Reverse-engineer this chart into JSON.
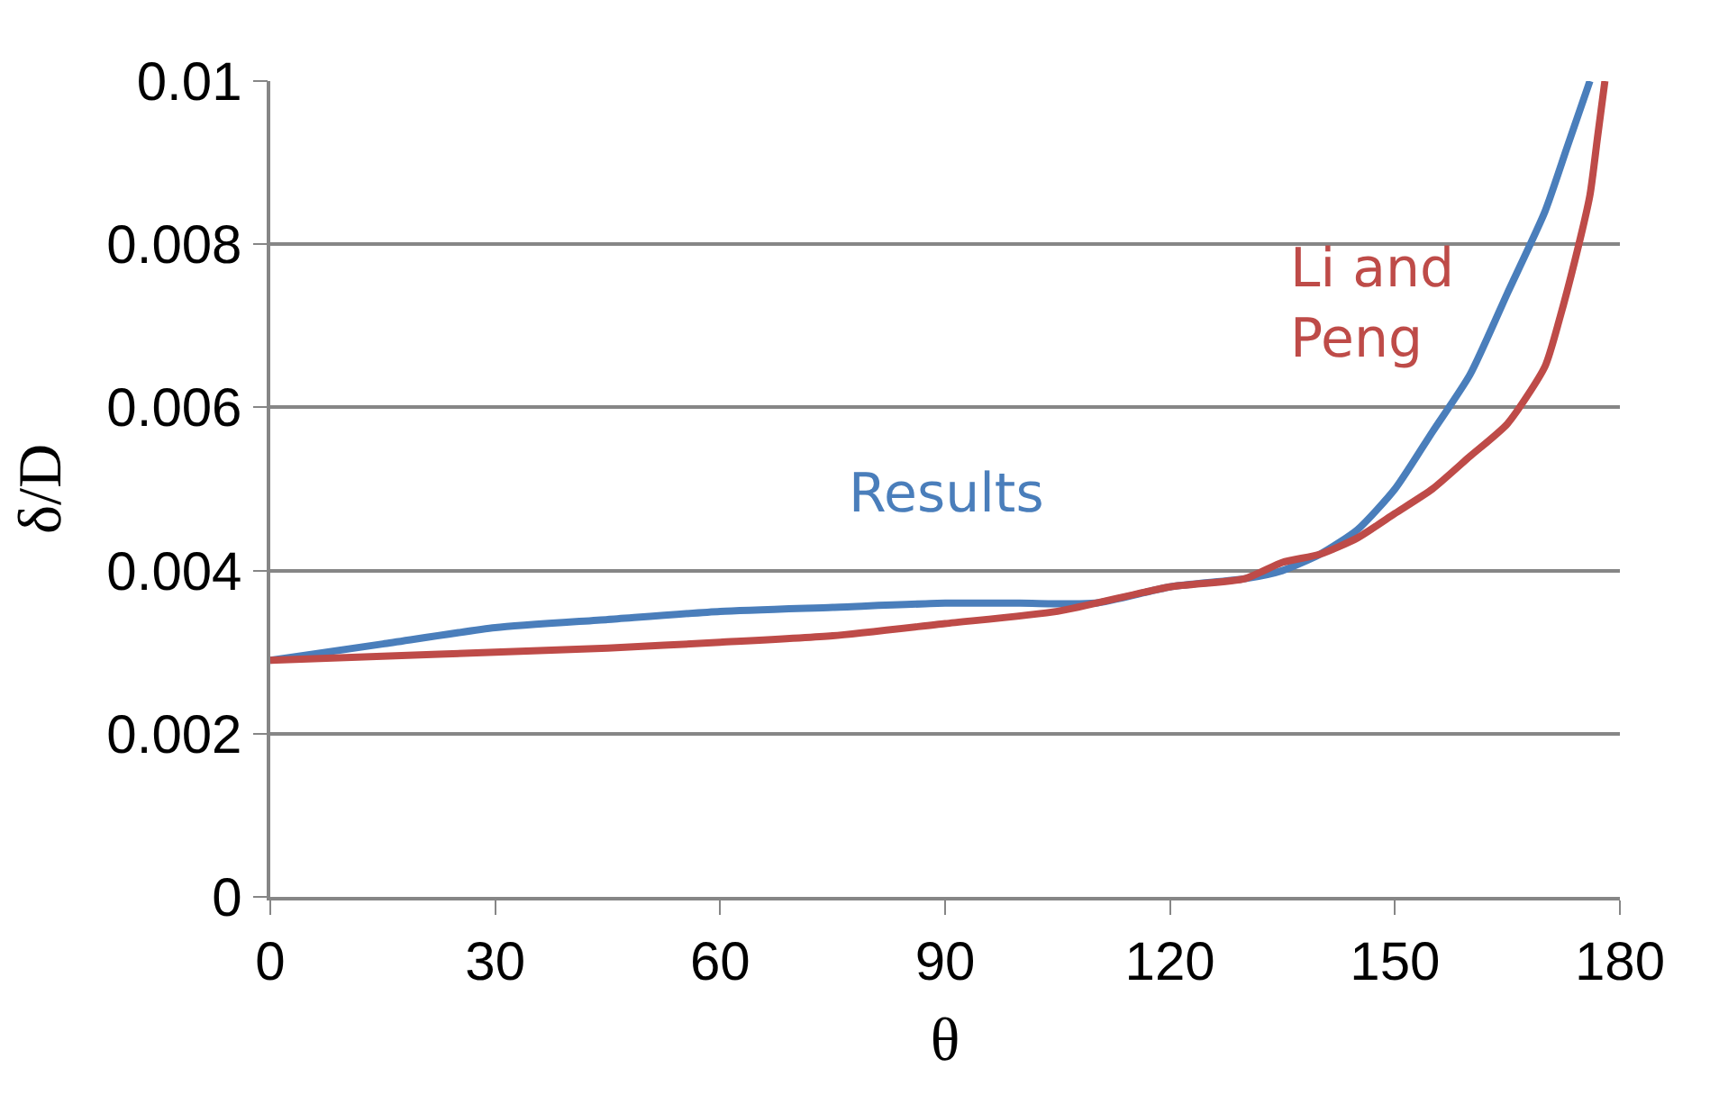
{
  "chart_data": {
    "type": "line",
    "xlabel": "θ",
    "ylabel": "δ/D",
    "xlim": [
      0,
      180
    ],
    "xticks": [
      0,
      30,
      60,
      90,
      120,
      150,
      180
    ],
    "ylim": [
      0,
      0.01
    ],
    "yticks": [
      0,
      0.002,
      0.004,
      0.006,
      0.008,
      0.01
    ],
    "grid": "y",
    "legend": false,
    "marker": "none",
    "line_style": "solid",
    "series": [
      {
        "name": "Results",
        "color": "#4a7ebb",
        "x": [
          0,
          15,
          30,
          45,
          60,
          75,
          90,
          100,
          110,
          120,
          130,
          135,
          140,
          145,
          150,
          155,
          160,
          165,
          170,
          173,
          176
        ],
        "values": [
          0.0029,
          0.0031,
          0.0033,
          0.0034,
          0.0035,
          0.00355,
          0.0036,
          0.0036,
          0.0036,
          0.0038,
          0.0039,
          0.004,
          0.0042,
          0.0045,
          0.005,
          0.0057,
          0.0064,
          0.0074,
          0.0084,
          0.0092,
          0.01
        ]
      },
      {
        "name": "Li and Peng",
        "color": "#be4b48",
        "x": [
          0,
          15,
          30,
          45,
          60,
          75,
          90,
          105,
          120,
          130,
          135,
          140,
          145,
          150,
          155,
          160,
          165,
          170,
          172,
          174,
          176,
          177,
          178
        ],
        "values": [
          0.0029,
          0.00295,
          0.003,
          0.00305,
          0.00312,
          0.0032,
          0.00335,
          0.0035,
          0.0038,
          0.0039,
          0.0041,
          0.0042,
          0.0044,
          0.0047,
          0.005,
          0.0054,
          0.0058,
          0.0065,
          0.0071,
          0.0078,
          0.0086,
          0.0093,
          0.01
        ]
      }
    ]
  }
}
